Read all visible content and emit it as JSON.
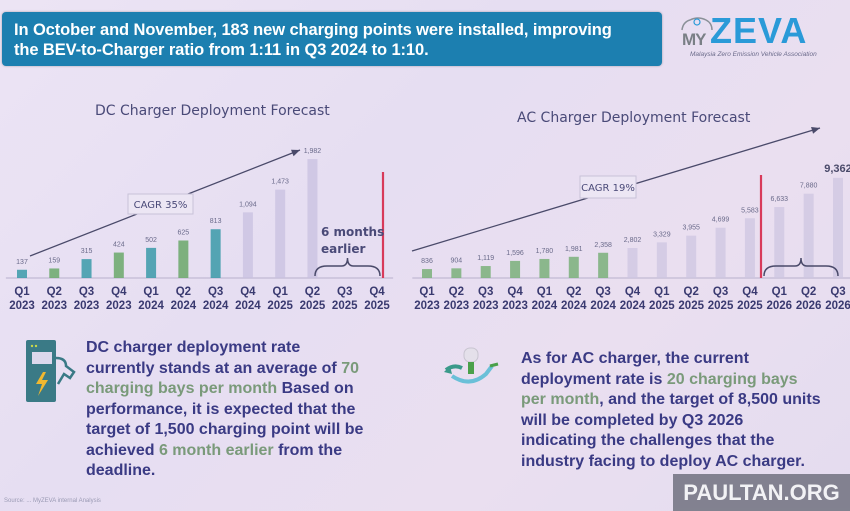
{
  "banner": {
    "line1": "In October and November, 183 new charging points were installed, improving",
    "line2": "the BEV-to-Charger ratio from 1:11 in Q3 2024 to 1:10."
  },
  "logo": {
    "my": "MY",
    "zeva": "ZEVA",
    "tagline": "Malaysia Zero Emission Vehicle Association"
  },
  "chart_data": [
    {
      "type": "bar",
      "title": "DC Charger Deployment Forecast",
      "categories": [
        "Q1 2023",
        "Q2 2023",
        "Q3 2023",
        "Q4 2023",
        "Q1 2024",
        "Q2 2024",
        "Q3 2024",
        "Q4 2024",
        "Q1 2025",
        "Q2 2025",
        "Q3 2025",
        "Q4 2025"
      ],
      "category_lines": [
        [
          "Q1",
          "2023"
        ],
        [
          "Q2",
          "2023"
        ],
        [
          "Q3",
          "2023"
        ],
        [
          "Q4",
          "2023"
        ],
        [
          "Q1",
          "2024"
        ],
        [
          "Q2",
          "2024"
        ],
        [
          "Q3",
          "2024"
        ],
        [
          "Q4",
          "2024"
        ],
        [
          "Q1",
          "2025"
        ],
        [
          "Q2",
          "2025"
        ],
        [
          "Q3",
          "2025"
        ],
        [
          "Q4",
          "2025"
        ]
      ],
      "values": [
        137,
        159,
        315,
        424,
        502,
        625,
        813,
        1094,
        1473,
        1982,
        null,
        null
      ],
      "labels": [
        "137",
        "159",
        "315",
        "424",
        "502",
        "625",
        "813",
        "1,094",
        "1,473",
        "1,982",
        "",
        ""
      ],
      "actual_until_index": 6,
      "ylim": [
        0,
        2100
      ],
      "annotations": {
        "cagr": "CAGR 35%",
        "early": [
          "6 months",
          "earlier"
        ],
        "deadline_marker_after": "Q4 2025",
        "brace_span": [
          "Q3 2025",
          "Q4 2025"
        ]
      },
      "colors": {
        "actual": "#6aa86a",
        "actual_alt": "#3a9aa8",
        "forecast": "#c8c0e0",
        "deadline": "#d83a5a"
      }
    },
    {
      "type": "bar",
      "title": "AC Charger Deployment Forecast",
      "categories": [
        "Q1 2023",
        "Q2 2023",
        "Q3 2023",
        "Q4 2023",
        "Q1 2024",
        "Q2 2024",
        "Q3 2024",
        "Q4 2024",
        "Q1 2025",
        "Q2 2025",
        "Q3 2025",
        "Q4 2025",
        "Q1 2026",
        "Q2 2026",
        "Q3 2026"
      ],
      "category_lines": [
        [
          "Q1",
          "2023"
        ],
        [
          "Q2",
          "2023"
        ],
        [
          "Q3",
          "2023"
        ],
        [
          "Q4",
          "2023"
        ],
        [
          "Q1",
          "2024"
        ],
        [
          "Q2",
          "2024"
        ],
        [
          "Q3",
          "2024"
        ],
        [
          "Q4",
          "2024"
        ],
        [
          "Q1",
          "2025"
        ],
        [
          "Q2",
          "2025"
        ],
        [
          "Q3",
          "2025"
        ],
        [
          "Q4",
          "2025"
        ],
        [
          "Q1",
          "2026"
        ],
        [
          "Q2",
          "2026"
        ],
        [
          "Q3",
          "2026"
        ]
      ],
      "values": [
        836,
        904,
        1119,
        1596,
        1780,
        1981,
        2358,
        2802,
        3329,
        3955,
        4699,
        5583,
        6633,
        7880,
        9362
      ],
      "labels": [
        "836",
        "904",
        "1,119",
        "1,596",
        "1,780",
        "1,981",
        "2,358",
        "2,802",
        "3,329",
        "3,955",
        "4,699",
        "5,583",
        "6,633",
        "7,880",
        "9,362"
      ],
      "actual_until_index": 6,
      "ylim": [
        0,
        10000
      ],
      "annotations": {
        "cagr": "CAGR 19%",
        "deadline_marker_after": "Q4 2025",
        "brace_span": [
          "Q1 2026",
          "Q3 2026"
        ]
      },
      "colors": {
        "actual": "#7ab07a",
        "forecast": "#cdc6e2",
        "deadline": "#d83a5a"
      }
    }
  ],
  "dc_description": {
    "parts": [
      {
        "text": "DC charger deployment rate currently stands at an average of ",
        "hl": false
      },
      {
        "text": "70 charging bays per month",
        "hl": true
      },
      {
        "text": " Based on performance, it is expected that the target of 1,500 charging point will be achieved ",
        "hl": false
      },
      {
        "text": "6 month earlier",
        "hl": true
      },
      {
        "text": "  from the deadline.",
        "hl": false
      }
    ]
  },
  "ac_description": {
    "parts": [
      {
        "text": "As for AC charger, the current deployment rate is ",
        "hl": false
      },
      {
        "text": "20 charging bays per month",
        "hl": true
      },
      {
        "text": ", and the target of 8,500 units will be completed by Q3 2026 indicating the challenges that the industry facing to deploy AC charger.",
        "hl": false
      }
    ]
  },
  "icons": {
    "dc": "ev-charger-icon",
    "ac": "ac-plug-icon"
  },
  "source": "Source: ... MyZEVA internal Analysis",
  "watermark": "PAULTAN.ORG"
}
